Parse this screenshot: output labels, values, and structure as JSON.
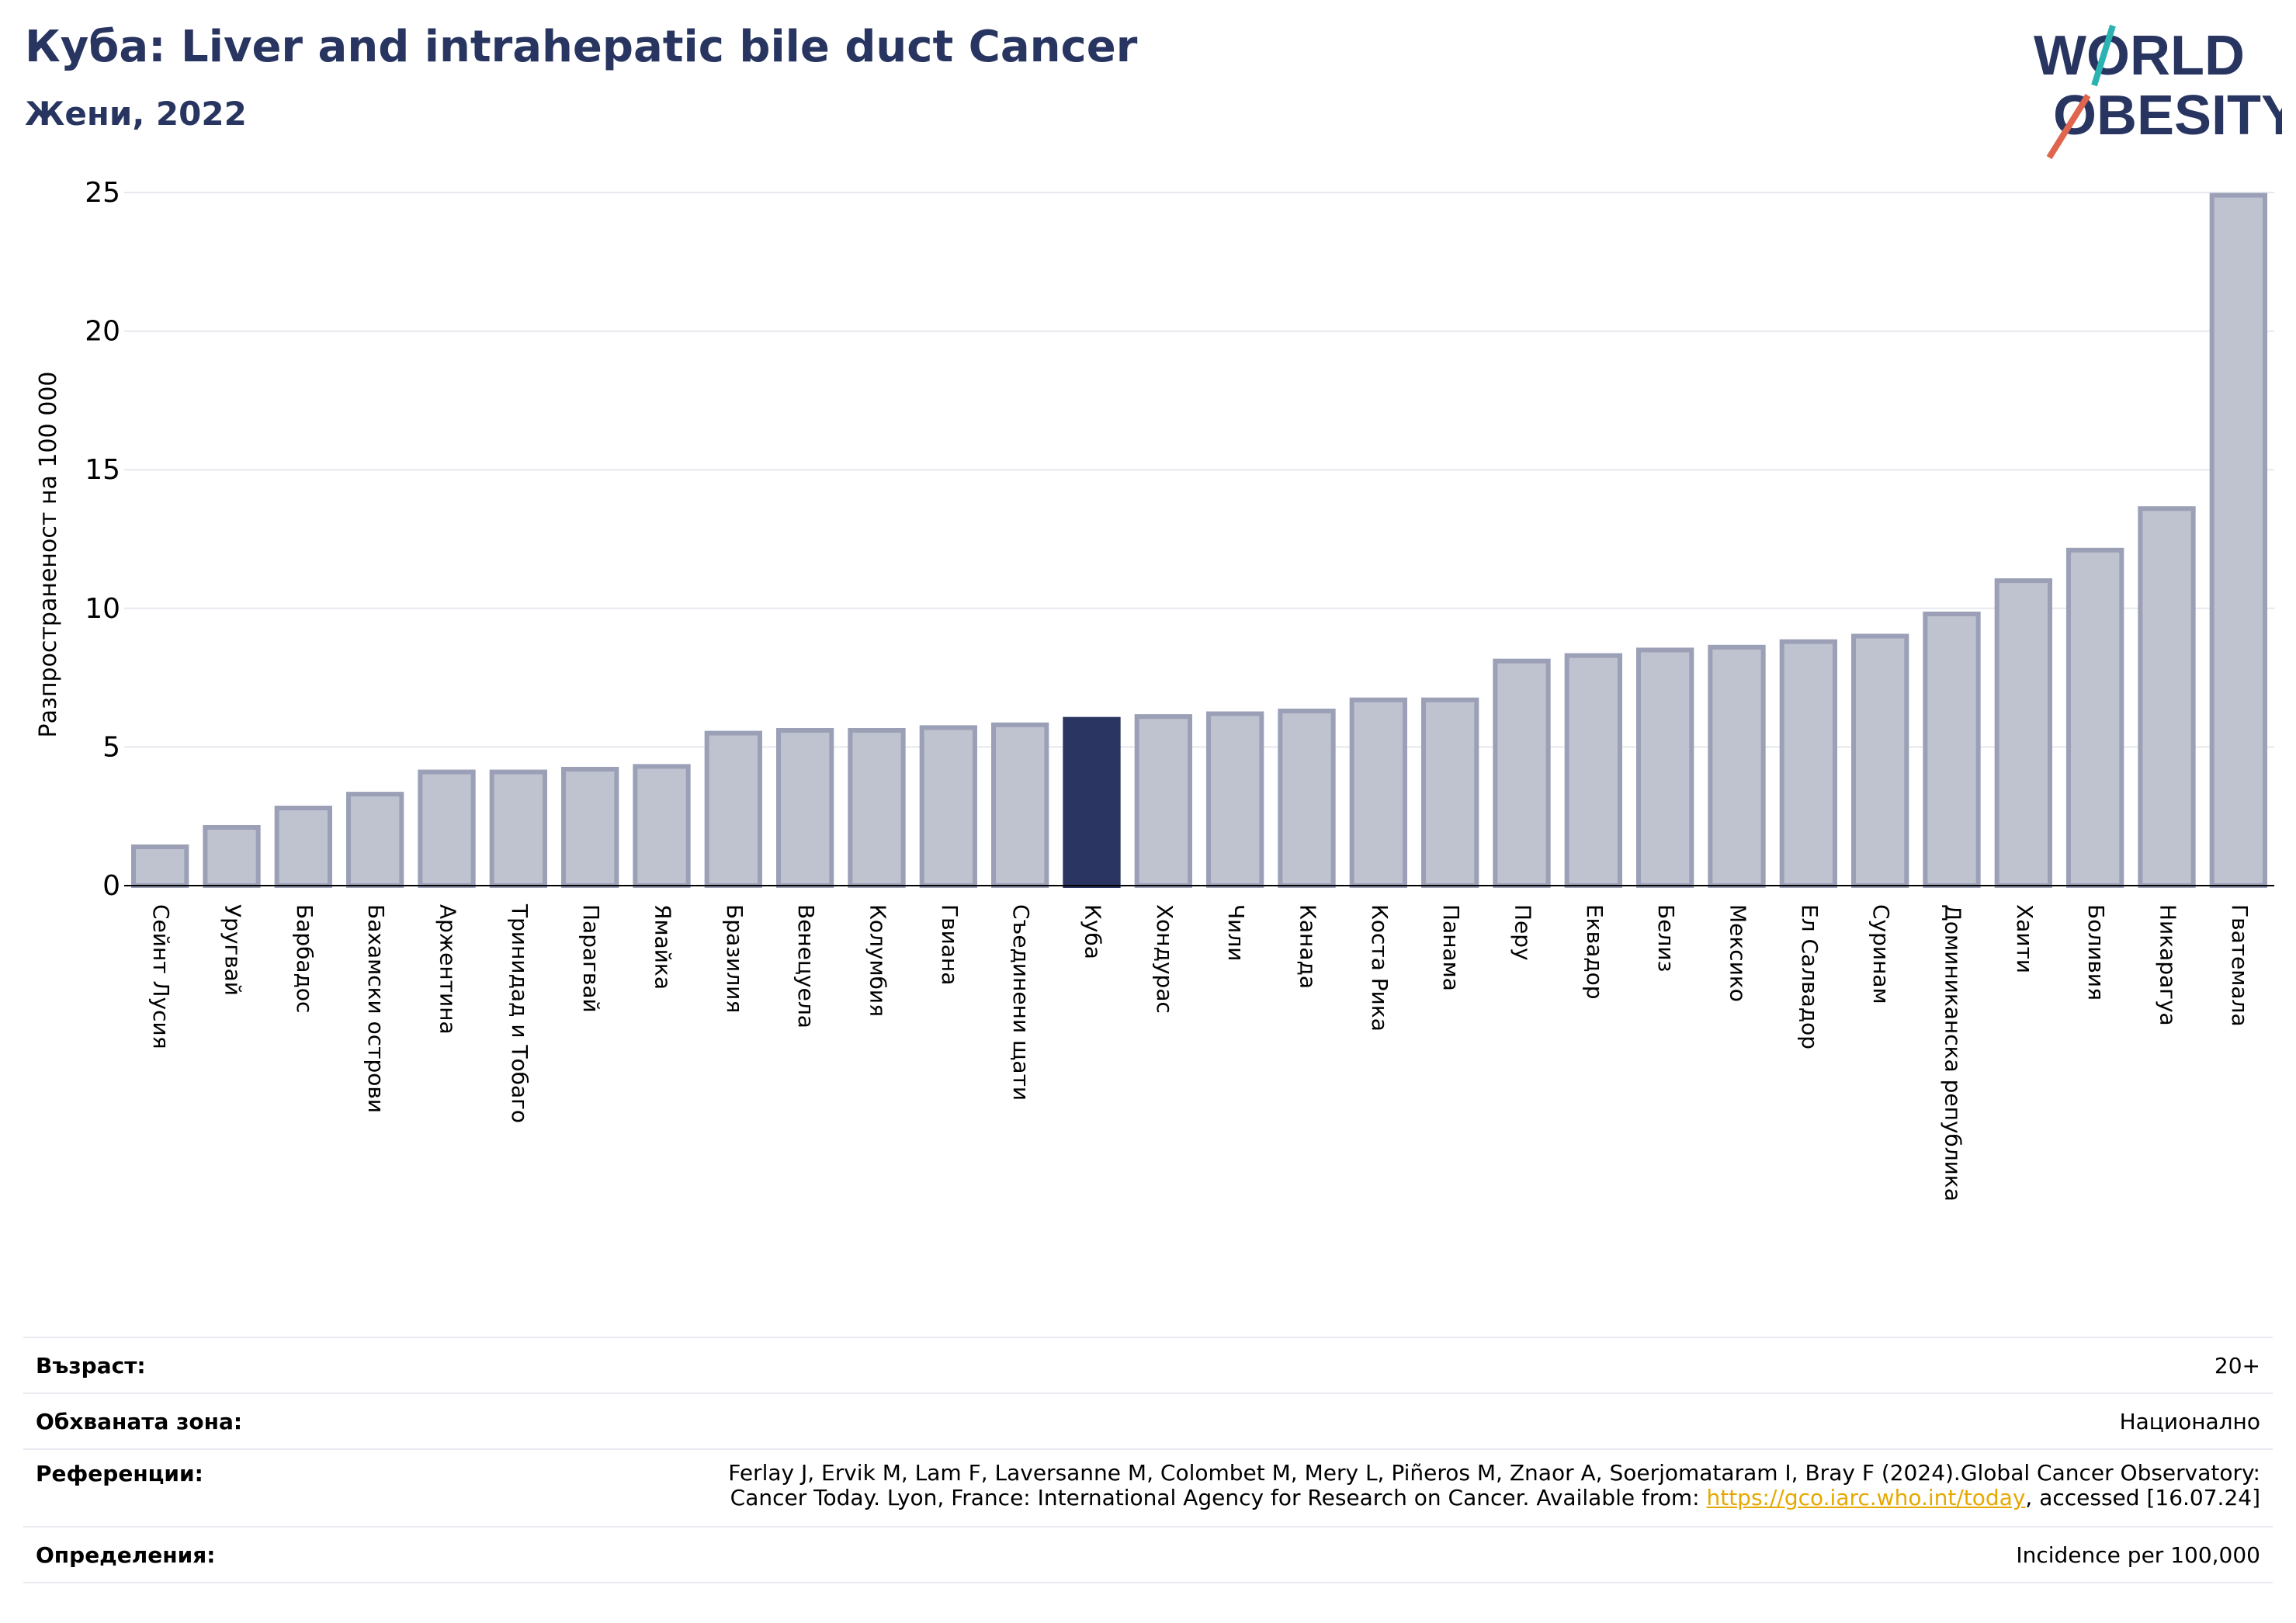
{
  "header": {
    "title": "Куба: Liver and intrahepatic bile duct Cancer",
    "subtitle": "Жени, 2022",
    "logo_line1": "WORLD",
    "logo_line2": "OBESITY"
  },
  "colors": {
    "accent": "#283560",
    "bar": "#bfc2cf",
    "bar_edge": "#9ba0b7",
    "highlight": "#2a3561",
    "logo_teal": "#2bb3b1",
    "logo_coral": "#e0654f",
    "link": "#e6a800"
  },
  "chart_data": {
    "type": "bar",
    "ylabel": "Разпространеност  на 100 000",
    "ylim": [
      0,
      25
    ],
    "yticks": [
      0,
      5,
      10,
      15,
      20,
      25
    ],
    "grid": true,
    "highlight": "Куба",
    "categories": [
      "Сейнт Лусия",
      "Уругвай",
      "Барбадос",
      "Бахамски острови",
      "Аржентина",
      "Тринидад и Тобаго",
      "Парагвай",
      "Ямайка",
      "Бразилия",
      "Венецуела",
      "Колумбия",
      "Гвиана",
      "Съединени щати",
      "Куба",
      "Хондурас",
      "Чили",
      "Канада",
      "Коста Рика",
      "Панама",
      "Перу",
      "Еквадор",
      "Белиз",
      "Мексико",
      "Ел Салвадор",
      "Суринам",
      "Доминиканска република",
      "Хаити",
      "Боливия",
      "Никарагуа",
      "Гватемала"
    ],
    "values": [
      1.4,
      2.1,
      2.8,
      3.3,
      4.1,
      4.1,
      4.2,
      4.3,
      5.5,
      5.6,
      5.6,
      5.7,
      5.8,
      6.0,
      6.1,
      6.2,
      6.3,
      6.7,
      6.7,
      8.1,
      8.3,
      8.5,
      8.6,
      8.8,
      9.0,
      9.8,
      11.0,
      12.1,
      13.6,
      24.9
    ]
  },
  "meta": [
    {
      "key": "Възраст:",
      "value": "20+"
    },
    {
      "key": "Обхваната зона:",
      "value": "Национално"
    },
    {
      "key": "Референции:",
      "value_line1": "Ferlay J, Ervik M, Lam F, Laversanne M, Colombet M, Mery L, Piñeros M, Znaor A, Soerjomataram I, Bray F (2024).Global Cancer Observatory:",
      "value_line2_pre": "Cancer Today. Lyon, France: International Agency for Research on Cancer. Available from: ",
      "link": "https://gco.iarc.who.int/today",
      "value_line2_post": ", accessed [16.07.24]"
    },
    {
      "key": "Определения:",
      "value": "Incidence per 100,000"
    }
  ]
}
